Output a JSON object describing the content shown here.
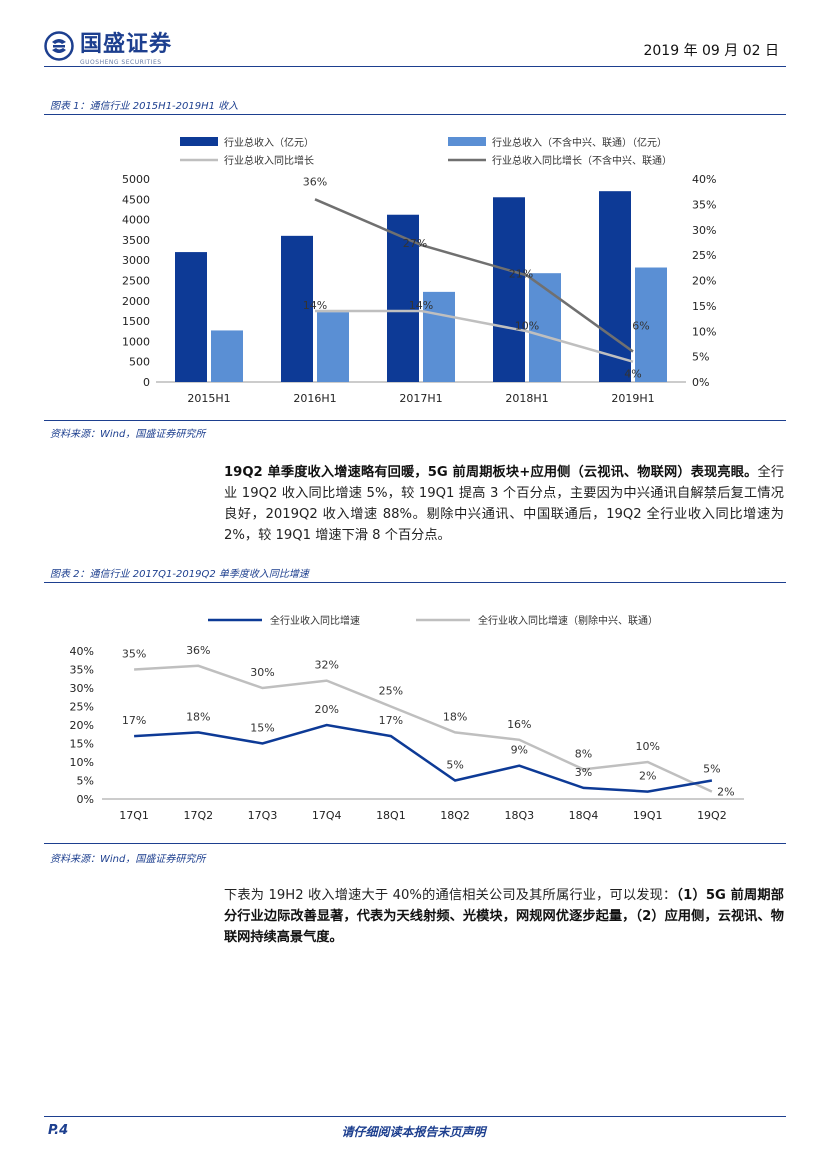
{
  "header": {
    "logo_text": "国盛证券",
    "logo_sub": "GUOSHENG SECURITIES",
    "date": "2019 年 09 月 02 日"
  },
  "figure1": {
    "caption": "图表 1：通信行业 2015H1-2019H1 收入",
    "source": "资料来源：Wind，国盛证券研究所"
  },
  "figure2": {
    "caption": "图表 2：通信行业 2017Q1-2019Q2 单季度收入同比增速",
    "source": "资料来源：Wind，国盛证券研究所"
  },
  "paragraph1": {
    "bold": "19Q2 单季度收入增速略有回暖，5G 前周期板块+应用侧（云视讯、物联网）表现亮眼。",
    "text": "全行业 19Q2 收入同比增速 5%，较 19Q1 提高 3 个百分点，主要因为中兴通讯自解禁后复工情况良好，2019Q2 收入增速 88%。剔除中兴通讯、中国联通后，19Q2 全行业收入同比增速为 2%，较 19Q1 增速下滑 8 个百分点。"
  },
  "paragraph2": {
    "text": "下表为 19H2 收入增速大于 40%的通信相关公司及其所属行业，可以发现：",
    "bold": "（1）5G 前周期部分行业边际改善显著，代表为天线射频、光模块，网规网优逐步起量，（2）应用侧，云视讯、物联网持续高景气度。"
  },
  "footer": {
    "page": "P.4",
    "notice": "请仔细阅读本报告末页声明"
  },
  "colors": {
    "dark_blue": "#0d3a96",
    "light_blue": "#5a8fd4",
    "light_gray": "#bfbfbf",
    "dark_gray": "#707070",
    "brand": "#1d3f8f"
  },
  "chart_data": [
    {
      "type": "bar",
      "title": "通信行业 2015H1-2019H1 收入",
      "categories": [
        "2015H1",
        "2016H1",
        "2017H1",
        "2018H1",
        "2019H1"
      ],
      "series": [
        {
          "name": "行业总收入（亿元）",
          "kind": "bar",
          "axis": "left",
          "values": [
            3200,
            3600,
            4120,
            4550,
            4700
          ]
        },
        {
          "name": "行业总收入（不含中兴、联通）（亿元）",
          "kind": "bar",
          "axis": "left",
          "values": [
            1270,
            1720,
            2220,
            2680,
            2820
          ]
        },
        {
          "name": "行业总收入同比增长",
          "kind": "line",
          "axis": "right",
          "values": [
            null,
            14,
            14,
            10,
            4
          ],
          "labels": [
            "",
            "14%",
            "14%",
            "10%",
            "4%"
          ]
        },
        {
          "name": "行业总收入同比增长（不含中兴、联通）",
          "kind": "line",
          "axis": "right",
          "values": [
            null,
            36,
            27,
            21,
            6
          ],
          "labels": [
            "",
            "36%",
            "27%",
            "21%",
            "6%"
          ]
        }
      ],
      "y_left": {
        "min": 0,
        "max": 5000,
        "step": 500,
        "ticks": [
          "0",
          "500",
          "1000",
          "1500",
          "2000",
          "2500",
          "3000",
          "3500",
          "4000",
          "4500",
          "5000"
        ]
      },
      "y_right": {
        "min": 0,
        "max": 40,
        "step": 5,
        "ticks": [
          "0%",
          "5%",
          "10%",
          "15%",
          "20%",
          "25%",
          "30%",
          "35%",
          "40%"
        ]
      },
      "legend_position": "top"
    },
    {
      "type": "line",
      "title": "通信行业 2017Q1-2019Q2 单季度收入同比增速",
      "categories": [
        "17Q1",
        "17Q2",
        "17Q3",
        "17Q4",
        "18Q1",
        "18Q2",
        "18Q3",
        "18Q4",
        "19Q1",
        "19Q2"
      ],
      "series": [
        {
          "name": "全行业收入同比增速",
          "values": [
            17,
            18,
            15,
            20,
            17,
            5,
            9,
            3,
            2,
            5
          ],
          "labels": [
            "17%",
            "18%",
            "15%",
            "20%",
            "17%",
            "5%",
            "9%",
            "3%",
            "2%",
            "5%"
          ]
        },
        {
          "name": "全行业收入同比增速（剔除中兴、联通）",
          "values": [
            35,
            36,
            30,
            32,
            25,
            18,
            16,
            8,
            10,
            2
          ],
          "labels": [
            "35%",
            "36%",
            "30%",
            "32%",
            "25%",
            "18%",
            "16%",
            "8%",
            "10%",
            "2%"
          ]
        }
      ],
      "y": {
        "min": 0,
        "max": 40,
        "step": 5,
        "ticks": [
          "0%",
          "5%",
          "10%",
          "15%",
          "20%",
          "25%",
          "30%",
          "35%",
          "40%"
        ]
      },
      "legend_position": "top"
    }
  ]
}
